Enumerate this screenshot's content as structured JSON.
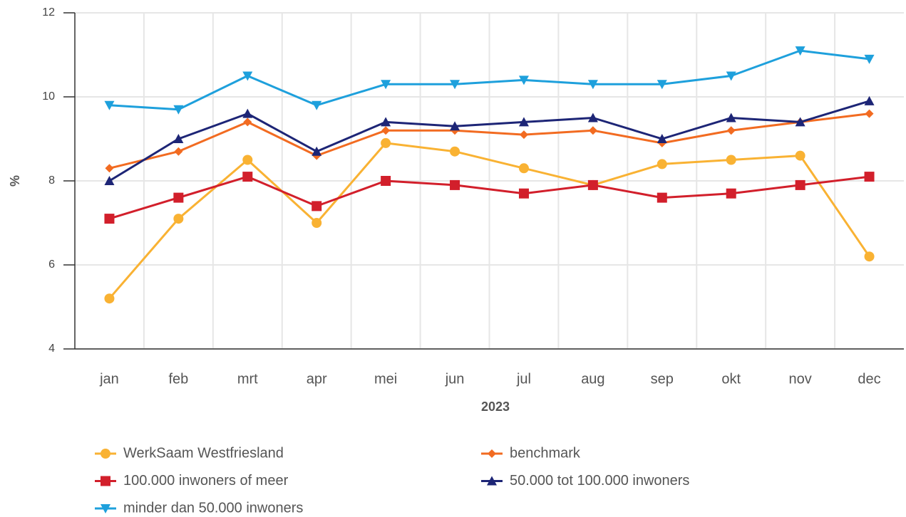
{
  "chart_data": {
    "type": "line",
    "x_label": "2023",
    "y_label": "%",
    "categories": [
      "jan",
      "feb",
      "mrt",
      "apr",
      "mei",
      "jun",
      "jul",
      "aug",
      "sep",
      "okt",
      "nov",
      "dec"
    ],
    "ylim": [
      4,
      12
    ],
    "yticks": [
      4,
      6,
      8,
      10,
      12
    ],
    "grid": true,
    "series": [
      {
        "name": "WerkSaam Westfriesland",
        "color": "#f9b233",
        "marker": "circle",
        "values": [
          5.2,
          7.1,
          8.5,
          7.0,
          8.9,
          8.7,
          8.3,
          7.9,
          8.4,
          8.5,
          8.6,
          6.2
        ]
      },
      {
        "name": "benchmark",
        "color": "#f26b21",
        "marker": "diamond",
        "values": [
          8.3,
          8.7,
          9.4,
          8.6,
          9.2,
          9.2,
          9.1,
          9.2,
          8.9,
          9.2,
          9.4,
          9.6
        ]
      },
      {
        "name": "100.000 inwoners of meer",
        "color": "#d21f2b",
        "marker": "square",
        "values": [
          7.1,
          7.6,
          8.1,
          7.4,
          8.0,
          7.9,
          7.7,
          7.9,
          7.6,
          7.7,
          7.9,
          8.1
        ]
      },
      {
        "name": "50.000 tot 100.000 inwoners",
        "color": "#1d2576",
        "marker": "triangle-up",
        "values": [
          8.0,
          9.0,
          9.6,
          8.7,
          9.4,
          9.3,
          9.4,
          9.5,
          9.0,
          9.5,
          9.4,
          9.9
        ]
      },
      {
        "name": "minder dan 50.000 inwoners",
        "color": "#1ea0dc",
        "marker": "triangle-down",
        "values": [
          9.8,
          9.7,
          10.5,
          9.8,
          10.3,
          10.3,
          10.4,
          10.3,
          10.3,
          10.5,
          11.1,
          10.9
        ]
      }
    ]
  }
}
